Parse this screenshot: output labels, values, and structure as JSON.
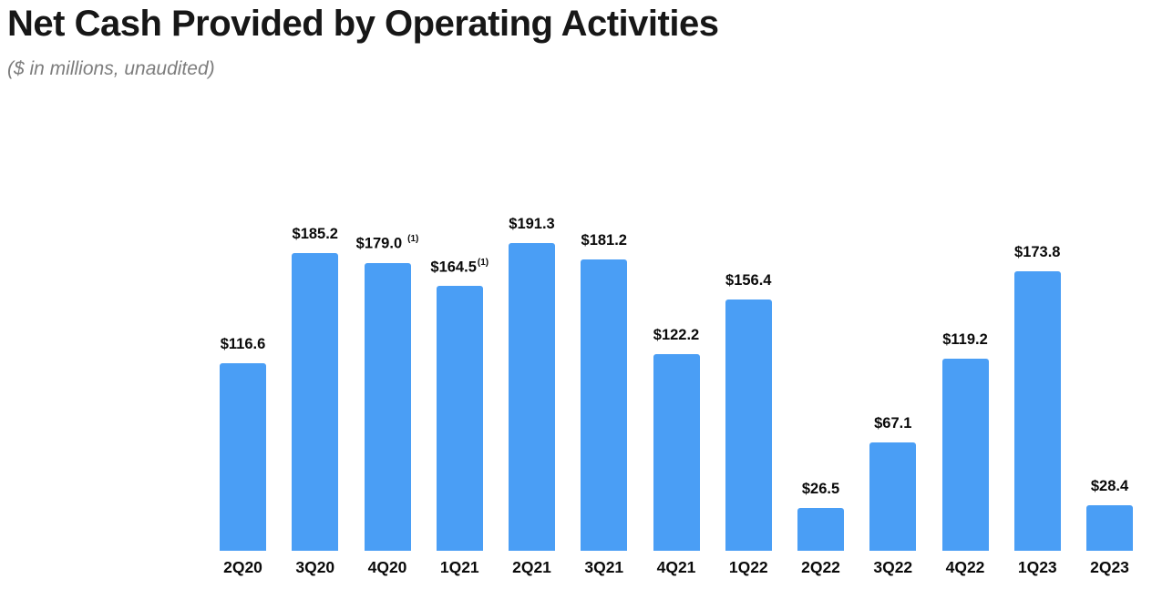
{
  "page": {
    "title": "Net Cash Provided by Operating Activities",
    "subtitle": "($ in millions, unaudited)"
  },
  "chart_data": {
    "type": "bar",
    "title": "Net Cash Provided by Operating Activities",
    "subtitle": "($ in millions, unaudited)",
    "unit": "$ in millions",
    "categories": [
      "2Q20",
      "3Q20",
      "4Q20",
      "1Q21",
      "2Q21",
      "3Q21",
      "4Q21",
      "1Q22",
      "2Q22",
      "3Q22",
      "4Q22",
      "1Q23",
      "2Q23"
    ],
    "values": [
      116.6,
      185.2,
      179.0,
      164.5,
      191.3,
      181.2,
      122.2,
      156.4,
      26.5,
      67.1,
      119.2,
      173.8,
      28.4
    ],
    "value_labels": [
      "$116.6",
      "$185.2",
      "$179.0",
      "$164.5",
      "$191.3",
      "$181.2",
      "$122.2",
      "$156.4",
      "$26.5",
      "$67.1",
      "$119.2",
      "$173.8",
      "$28.4"
    ],
    "footnotes": [
      null,
      null,
      "(1)",
      "(1)",
      null,
      null,
      null,
      null,
      null,
      null,
      null,
      null,
      null
    ],
    "footnote_spaced": [
      false,
      false,
      true,
      false,
      false,
      false,
      false,
      false,
      false,
      false,
      false,
      false,
      false
    ],
    "bar_color": "#4A9EF5",
    "label_color": "#0a0a0a",
    "layout_hints": {
      "ylim": [
        0,
        200
      ],
      "gridlines": false,
      "y_axis_visible": false,
      "x_axis_line_visible": false,
      "legend": "none",
      "value_labels_position": "above-bars"
    }
  }
}
